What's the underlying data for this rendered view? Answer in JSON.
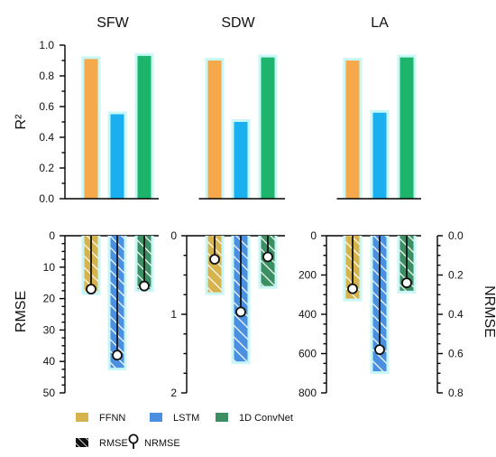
{
  "chart_data": {
    "type": "bar",
    "model_names": [
      "FFNN",
      "LSTM",
      "1D ConvNet"
    ],
    "colors": {
      "r2": [
        "#f5a94a",
        "#1ab0f0",
        "#1db56c"
      ],
      "error": [
        "#d6b34c",
        "#4a8fe0",
        "#3c8f63"
      ],
      "glow_r2": "#c9f7f7",
      "marker": "#111111"
    },
    "top": {
      "ylabel": "R²",
      "ylim": [
        0,
        1
      ],
      "yticks": [
        "0.0",
        "0.2",
        "0.4",
        "0.6",
        "0.8",
        "1.0"
      ],
      "panels": [
        {
          "title": "SFW",
          "values": [
            0.91,
            0.55,
            0.93
          ]
        },
        {
          "title": "SDW",
          "values": [
            0.9,
            0.5,
            0.92
          ]
        },
        {
          "title": "LA",
          "values": [
            0.9,
            0.56,
            0.92
          ]
        }
      ]
    },
    "bottom": {
      "left_ylabel": "RMSE",
      "right_ylabel": "NRMSE",
      "panels": [
        {
          "ylim": [
            0,
            50
          ],
          "yticks": [
            "0",
            "10",
            "20",
            "30",
            "40",
            "50"
          ],
          "rmse": [
            18,
            42,
            17
          ],
          "nrmse": [
            17,
            38,
            16
          ]
        },
        {
          "ylim": [
            0,
            2
          ],
          "yticks": [
            "0",
            "1",
            "2"
          ],
          "rmse": [
            0.72,
            1.6,
            0.64
          ],
          "nrmse": [
            0.3,
            0.97,
            0.27
          ]
        },
        {
          "ylim": [
            0,
            800
          ],
          "yticks": [
            "0",
            "200",
            "400",
            "600",
            "800"
          ],
          "rmse": [
            320,
            690,
            280
          ],
          "nrmse": [
            0.27,
            0.58,
            0.24
          ],
          "nrmse_ylim": [
            0,
            0.8
          ],
          "nrmse_yticks": [
            "0.0",
            "0.2",
            "0.4",
            "0.6",
            "0.8"
          ]
        }
      ]
    },
    "legend": {
      "items": [
        "FFNN",
        "LSTM",
        "1D ConvNet"
      ],
      "rmse_label": "RMSE",
      "nrmse_label": "NRMSE"
    }
  }
}
